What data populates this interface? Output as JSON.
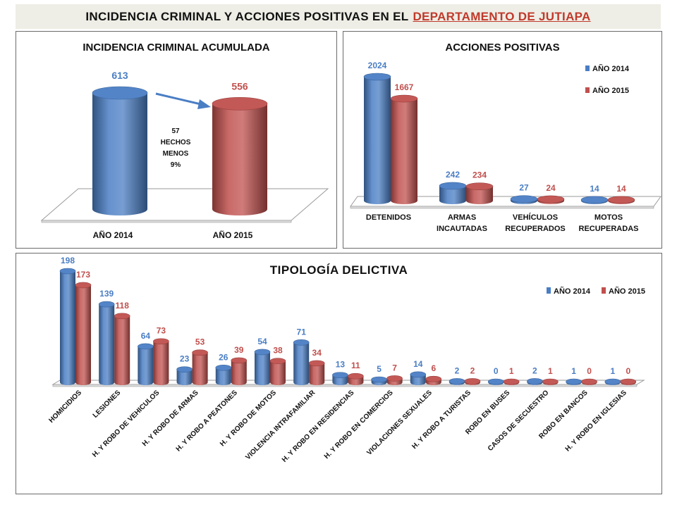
{
  "header": {
    "title_prefix": "INCIDENCIA CRIMINAL Y ACCIONES POSITIVAS EN EL",
    "title_highlight": "DEPARTAMENTO  DE JUTIAPA"
  },
  "colors": {
    "y2014": "#4a7ec4",
    "y2015": "#c0504d",
    "label2014": "#4a7ec4",
    "label2015": "#c0504d"
  },
  "chart_data": [
    {
      "type": "bar",
      "title": "INCIDENCIA CRIMINAL ACUMULADA",
      "categories": [
        "AÑO 2014",
        "AÑO 2015"
      ],
      "values": [
        613,
        556
      ],
      "annotation": [
        "57",
        "HECHOS",
        "MENOS",
        "9%"
      ]
    },
    {
      "type": "bar",
      "title": "ACCIONES POSITIVAS",
      "categories": [
        "DETENIDOS",
        "ARMAS INCAUTADAS",
        "VEHÍCULOS RECUPERADOS",
        "MOTOS RECUPERADAS"
      ],
      "series": [
        {
          "name": "AÑO 2014",
          "values": [
            2024,
            242,
            27,
            14
          ]
        },
        {
          "name": "AÑO 2015",
          "values": [
            1667,
            234,
            24,
            14
          ]
        }
      ],
      "legend": "top-right"
    },
    {
      "type": "bar",
      "title": "TIPOLOGÍA  DELICTIVA",
      "categories": [
        "HOMICIDIOS",
        "LESIONES",
        "H. Y ROBO DE VEHICULOS",
        "H. Y ROBO DE ARMAS",
        "H. Y ROBO A PEATONES",
        "H. Y ROBO DE MOTOS",
        "VIOLENCIA INTRAFAMILIAR",
        "H. Y ROBO EN RESIDENCIAS",
        "H. Y ROBO EN COMERCIOS",
        "VIOLACIONES SEXUALES",
        "H. Y ROBO A TURISTAS",
        "ROBO EN BUSES",
        "CASOS DE SECUESTRO",
        "ROBO EN BANCOS",
        "H. Y ROBO EN IGLESIAS"
      ],
      "series": [
        {
          "name": "AÑO 2014",
          "values": [
            198,
            139,
            64,
            23,
            26,
            54,
            71,
            13,
            5,
            14,
            2,
            0,
            2,
            1,
            1
          ]
        },
        {
          "name": "AÑO 2015",
          "values": [
            173,
            118,
            73,
            53,
            39,
            38,
            34,
            11,
            7,
            6,
            2,
            1,
            1,
            0,
            0
          ]
        }
      ],
      "legend": "top-right"
    }
  ]
}
